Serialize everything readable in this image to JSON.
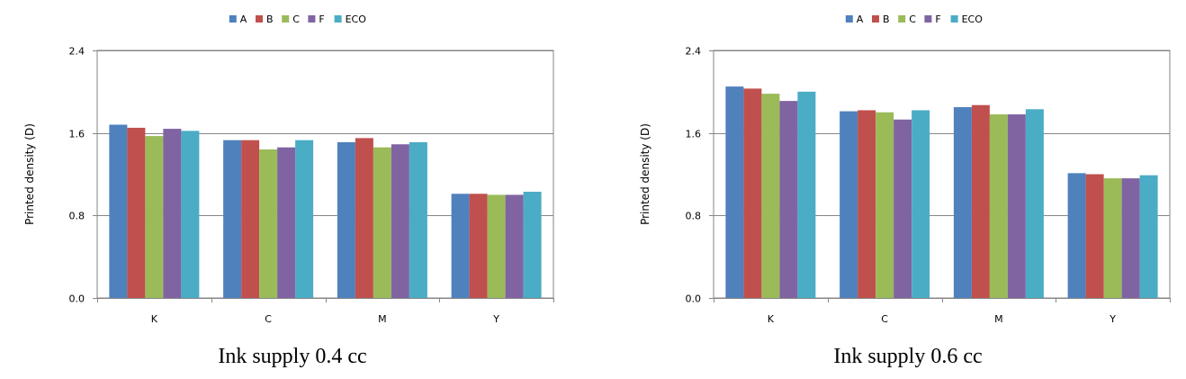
{
  "colors": {
    "A": "#4f81bd",
    "B": "#c0504d",
    "C": "#9bbb59",
    "F": "#8064a2",
    "ECO": "#4bacc6",
    "grid": "#868686",
    "axis": "#868686"
  },
  "chart_data": [
    {
      "type": "bar",
      "caption": "Ink supply 0.4 cc",
      "ylabel": "Printed density (D)",
      "xlabel": "",
      "ylim": [
        0,
        2.4
      ],
      "yticks": [
        "0.0",
        "0.8",
        "1.6",
        "2.4"
      ],
      "ytick_values": [
        0,
        0.8,
        1.6,
        2.4
      ],
      "grid": true,
      "legend_position": "top",
      "categories": [
        "K",
        "C",
        "M",
        "Y"
      ],
      "series": [
        {
          "name": "A",
          "values": [
            1.68,
            1.53,
            1.51,
            1.01
          ]
        },
        {
          "name": "B",
          "values": [
            1.65,
            1.53,
            1.55,
            1.01
          ]
        },
        {
          "name": "C",
          "values": [
            1.57,
            1.44,
            1.46,
            1.0
          ]
        },
        {
          "name": "F",
          "values": [
            1.64,
            1.46,
            1.49,
            1.0
          ]
        },
        {
          "name": "ECO",
          "values": [
            1.62,
            1.53,
            1.51,
            1.03
          ]
        }
      ]
    },
    {
      "type": "bar",
      "caption": "Ink supply 0.6 cc",
      "ylabel": "Printed density (D)",
      "xlabel": "",
      "ylim": [
        0,
        2.4
      ],
      "yticks": [
        "0.0",
        "0.8",
        "1.6",
        "2.4"
      ],
      "ytick_values": [
        0,
        0.8,
        1.6,
        2.4
      ],
      "grid": true,
      "legend_position": "top",
      "categories": [
        "K",
        "C",
        "M",
        "Y"
      ],
      "series": [
        {
          "name": "A",
          "values": [
            2.05,
            1.81,
            1.85,
            1.21
          ]
        },
        {
          "name": "B",
          "values": [
            2.03,
            1.82,
            1.87,
            1.2
          ]
        },
        {
          "name": "C",
          "values": [
            1.98,
            1.8,
            1.78,
            1.16
          ]
        },
        {
          "name": "F",
          "values": [
            1.91,
            1.73,
            1.78,
            1.16
          ]
        },
        {
          "name": "ECO",
          "values": [
            2.0,
            1.82,
            1.83,
            1.19
          ]
        }
      ]
    }
  ]
}
